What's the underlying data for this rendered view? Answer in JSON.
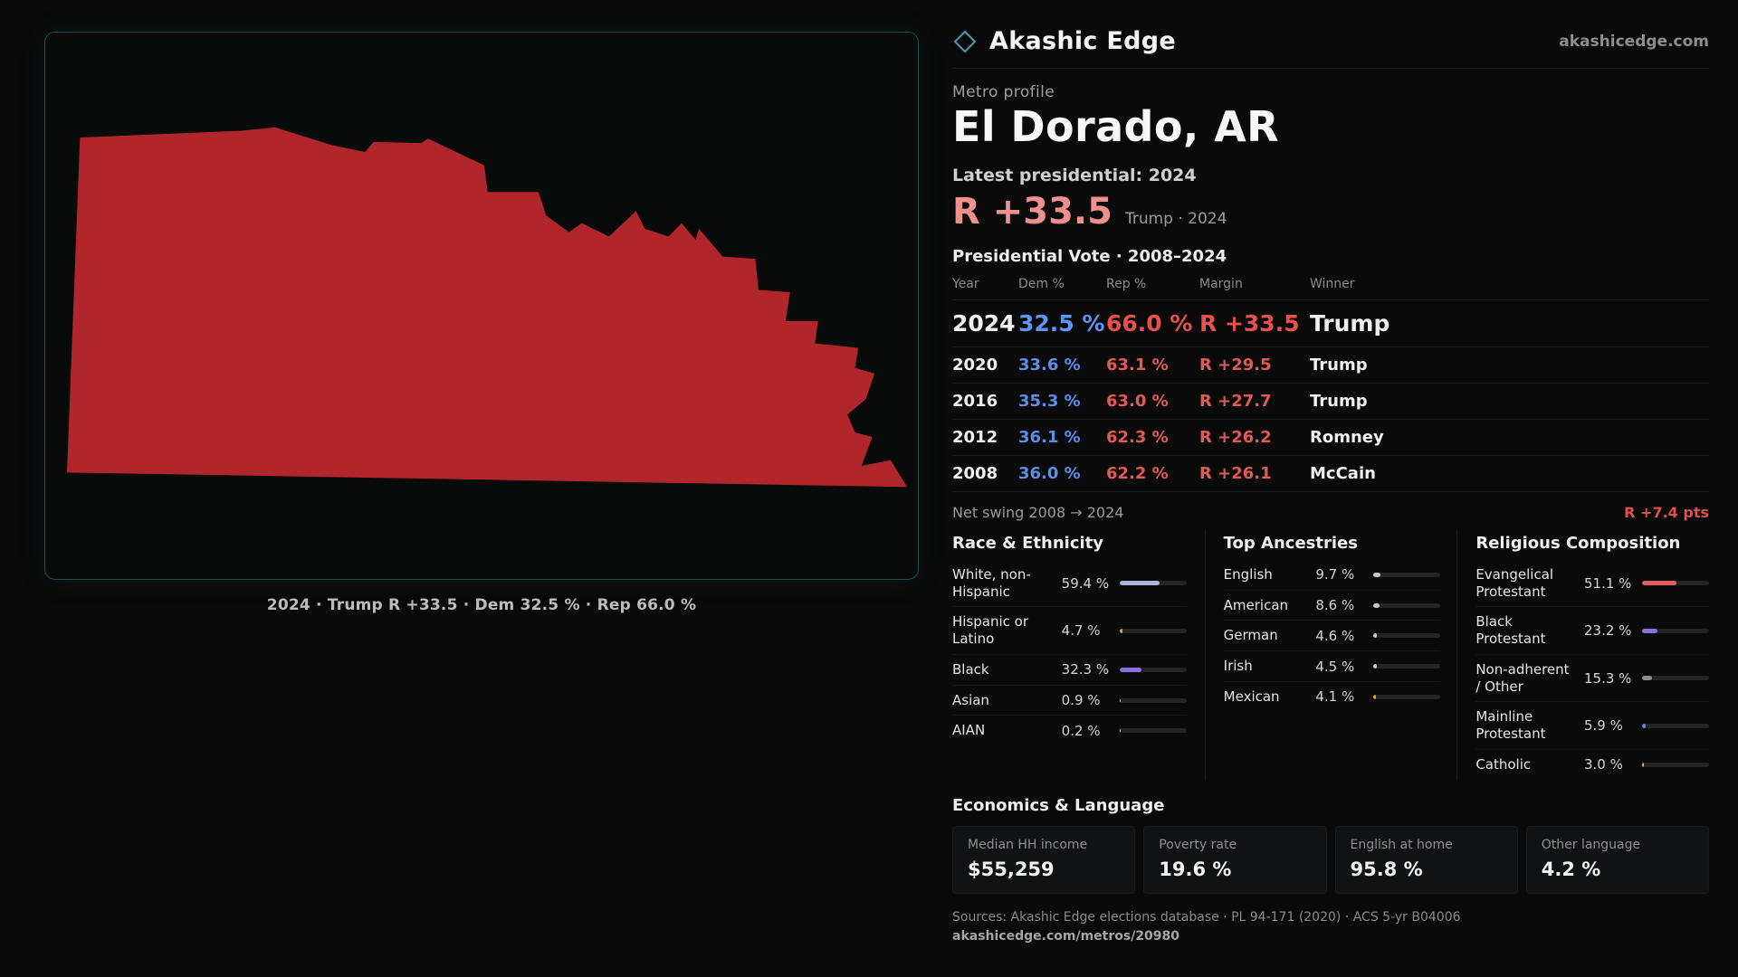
{
  "colors": {
    "map_red": "#b0262b",
    "accent_red": "#f0908c",
    "dem_blue": "#5b8ee6",
    "rep_red": "#df5a55",
    "card_border": "#1e4c51"
  },
  "header": {
    "brand": "Akashic Edge",
    "site": "akashicedge.com"
  },
  "map_card": {
    "caption": "2024 · Trump R +33.5 · Dem 32.5 % · Rep 66.0 %"
  },
  "profile": {
    "kicker": "Metro profile",
    "title": "El Dorado, AR",
    "latest_label": "Latest presidential: 2024",
    "headline_margin": "R +33.5",
    "headline_note": "Trump · 2024"
  },
  "results": {
    "title": "Presidential Vote · 2008–2024",
    "columns": [
      "Year",
      "Dem %",
      "Rep %",
      "Margin",
      "Winner"
    ],
    "rows": [
      {
        "year": "2024",
        "dem": "32.5 %",
        "rep": "66.0 %",
        "margin": "R +33.5",
        "winner": "Trump"
      },
      {
        "year": "2020",
        "dem": "33.6 %",
        "rep": "63.1 %",
        "margin": "R +29.5",
        "winner": "Trump"
      },
      {
        "year": "2016",
        "dem": "35.3 %",
        "rep": "63.0 %",
        "margin": "R +27.7",
        "winner": "Trump"
      },
      {
        "year": "2012",
        "dem": "36.1 %",
        "rep": "62.3 %",
        "margin": "R +26.2",
        "winner": "Romney"
      },
      {
        "year": "2008",
        "dem": "36.0 %",
        "rep": "62.2 %",
        "margin": "R +26.1",
        "winner": "McCain"
      }
    ],
    "net_swing_label": "Net swing 2008 → 2024",
    "net_swing_value": "R +7.4 pts"
  },
  "race_panel": {
    "title": "Race & Ethnicity",
    "rows": [
      {
        "label": "White, non-Hispanic",
        "value": "59.4 %",
        "pct": 59.4,
        "color": "#a9b6da"
      },
      {
        "label": "Hispanic or Latino",
        "value": "4.7 %",
        "pct": 4.7,
        "color": "#e5a23c"
      },
      {
        "label": "Black",
        "value": "32.3 %",
        "pct": 32.3,
        "color": "#8f6ede"
      },
      {
        "label": "Asian",
        "value": "0.9 %",
        "pct": 0.9,
        "color": "#cfcfcf"
      },
      {
        "label": "AIAN",
        "value": "0.2 %",
        "pct": 0.2,
        "color": "#cfcfcf"
      }
    ]
  },
  "ancestry_panel": {
    "title": "Top Ancestries",
    "rows": [
      {
        "label": "English",
        "value": "9.7 %",
        "pct": 9.7,
        "color": "#c9c9c9"
      },
      {
        "label": "American",
        "value": "8.6 %",
        "pct": 8.6,
        "color": "#c9c9c9"
      },
      {
        "label": "German",
        "value": "4.6 %",
        "pct": 4.6,
        "color": "#c9c9c9"
      },
      {
        "label": "Irish",
        "value": "4.5 %",
        "pct": 4.5,
        "color": "#c9c9c9"
      },
      {
        "label": "Mexican",
        "value": "4.1 %",
        "pct": 4.1,
        "color": "#e5a23c"
      }
    ]
  },
  "religion_panel": {
    "title": "Religious Composition",
    "rows": [
      {
        "label": "Evangelical Protestant",
        "value": "51.1 %",
        "pct": 51.1,
        "color": "#e0615c"
      },
      {
        "label": "Black Protestant",
        "value": "23.2 %",
        "pct": 23.2,
        "color": "#8f6ede"
      },
      {
        "label": "Non-adherent / Other",
        "value": "15.3 %",
        "pct": 15.3,
        "color": "#8c8c8c"
      },
      {
        "label": "Mainline Protestant",
        "value": "5.9 %",
        "pct": 5.9,
        "color": "#5b8ee6"
      },
      {
        "label": "Catholic",
        "value": "3.0 %",
        "pct": 3.0,
        "color": "#e5c43c"
      }
    ]
  },
  "economics": {
    "title": "Economics & Language",
    "stats": [
      {
        "label": "Median HH income",
        "value": "$55,259"
      },
      {
        "label": "Poverty rate",
        "value": "19.6 %"
      },
      {
        "label": "English at home",
        "value": "95.8 %"
      },
      {
        "label": "Other language",
        "value": "4.2 %"
      }
    ]
  },
  "footer": {
    "sources": "Sources: Akashic Edge elections database · PL 94-171 (2020) · ACS 5-yr B04006",
    "permalink": "akashicedge.com/metros/20980"
  }
}
